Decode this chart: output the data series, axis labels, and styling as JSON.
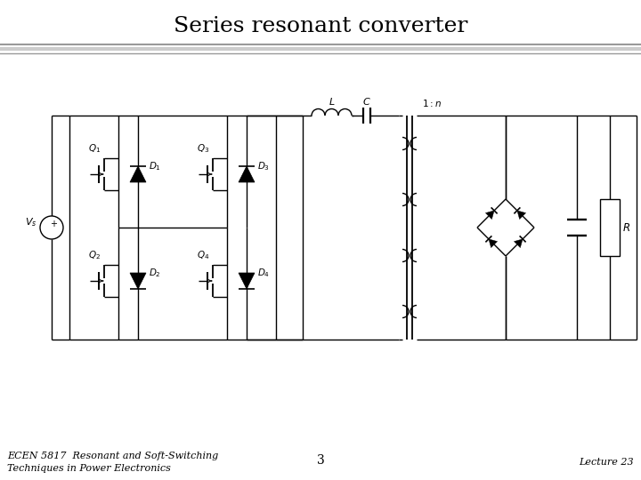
{
  "title": "Series resonant converter",
  "title_fontsize": 18,
  "title_font": "serif",
  "footer_left": "ECEN 5817  Resonant and Soft-Switching\nTechniques in Power Electronics",
  "footer_center": "3",
  "footer_right": "Lecture 23",
  "footer_fontsize": 8,
  "footer_font": "serif",
  "bg_color": "#ffffff",
  "line_color": "#000000",
  "lw": 1.0
}
